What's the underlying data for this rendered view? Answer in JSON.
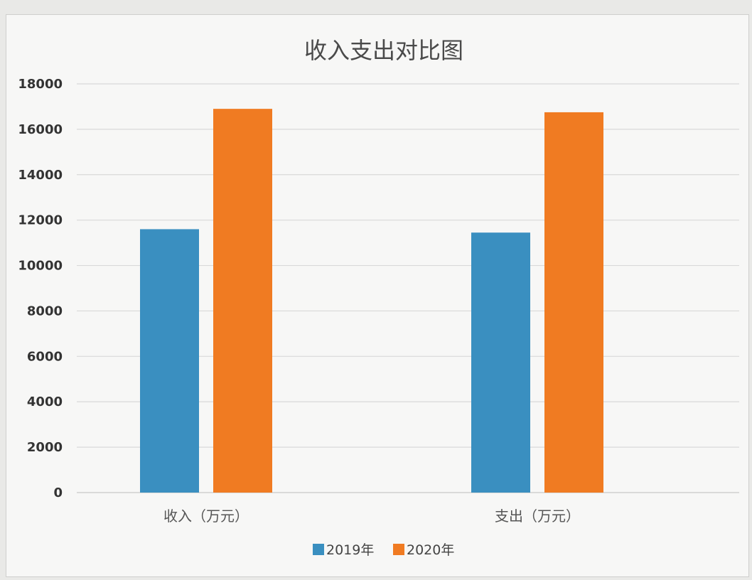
{
  "chart_data": {
    "type": "bar",
    "title": "收入支出对比图",
    "categories": [
      "收入（万元）",
      "支出（万元）"
    ],
    "series": [
      {
        "name": "2019年",
        "values": [
          11600,
          11450
        ],
        "color": "#3a8fc0"
      },
      {
        "name": "2020年",
        "values": [
          16900,
          16750
        ],
        "color": "#f07b22"
      }
    ],
    "ylim": [
      0,
      18000
    ],
    "yticks": [
      0,
      2000,
      4000,
      6000,
      8000,
      10000,
      12000,
      14000,
      16000,
      18000
    ],
    "grid": true,
    "legend_position": "bottom"
  }
}
